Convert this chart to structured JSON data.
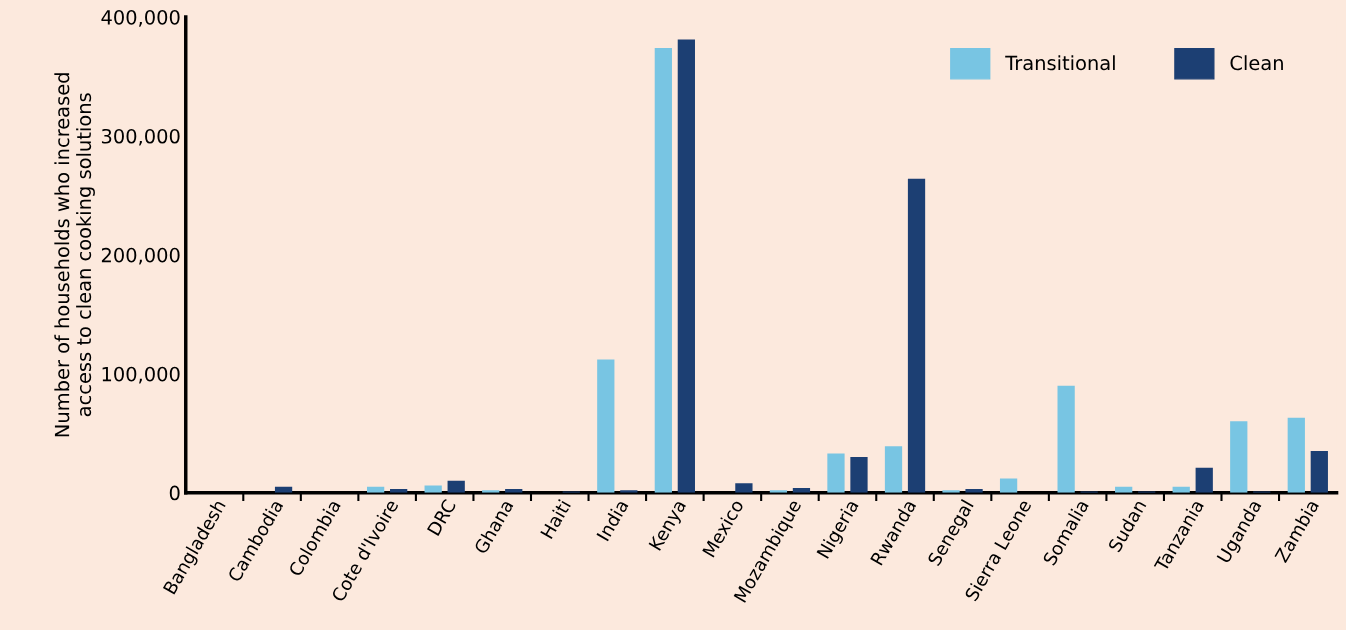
{
  "chart_data": {
    "type": "bar",
    "ylabel": "Number of households who increased\naccess to clean cooking solutions",
    "categories": [
      "Bangladesh",
      "Cambodia",
      "Colombia",
      "Cote d'Ivoire",
      "DRC",
      "Ghana",
      "Haiti",
      "India",
      "Kenya",
      "Mexico",
      "Mozambique",
      "Nigeria",
      "Rwanda",
      "Senegal",
      "Sierra Leone",
      "Somalia",
      "Sudan",
      "Tanzania",
      "Uganda",
      "Zambia"
    ],
    "series": [
      {
        "name": "Transitional",
        "color": "#78c5e3",
        "values": [
          0,
          0,
          0,
          5000,
          6000,
          2000,
          0,
          112000,
          374000,
          0,
          2000,
          33000,
          39000,
          2000,
          12000,
          90000,
          5000,
          5000,
          60000,
          63000
        ]
      },
      {
        "name": "Clean",
        "color": "#1c3f73",
        "values": [
          0,
          5000,
          0,
          3000,
          10000,
          3000,
          1000,
          2000,
          381000,
          8000,
          4000,
          30000,
          264000,
          3000,
          0,
          1000,
          1000,
          21000,
          1000,
          35000
        ]
      }
    ],
    "ylim": [
      0,
      400000
    ],
    "yticks": [
      {
        "value": 0,
        "label": "0"
      },
      {
        "value": 100000,
        "label": "100,000"
      },
      {
        "value": 200000,
        "label": "200,000"
      },
      {
        "value": 300000,
        "label": "300,000"
      },
      {
        "value": 400000,
        "label": "400,000"
      }
    ],
    "grid": false,
    "legend": "top right"
  }
}
